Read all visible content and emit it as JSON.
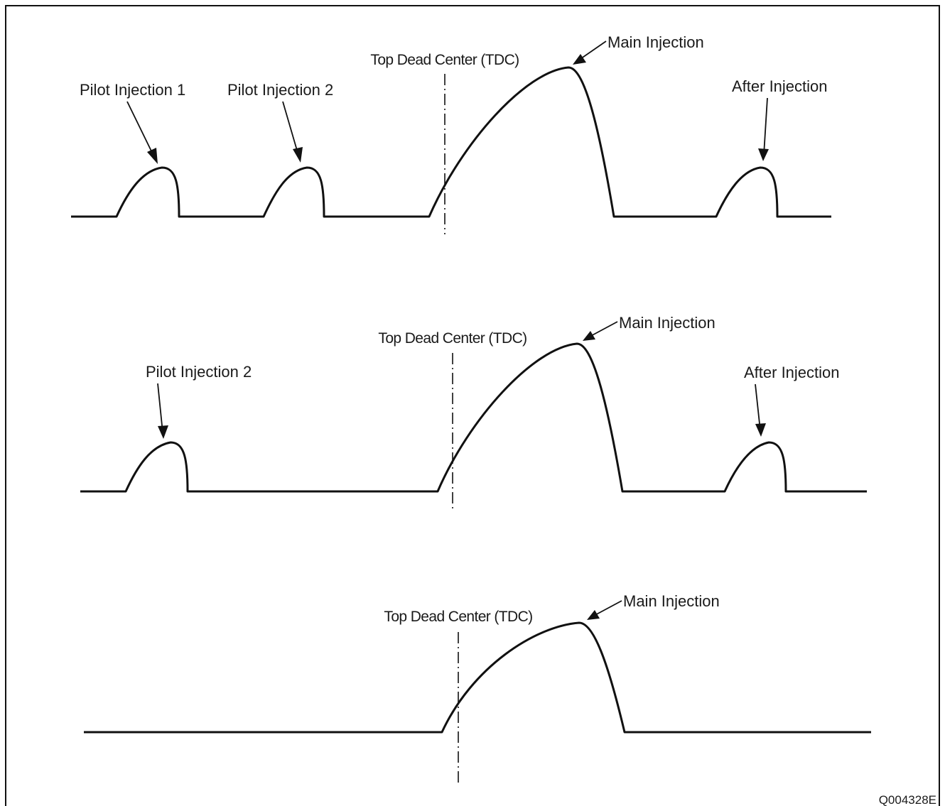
{
  "figure": {
    "code": "Q004328E",
    "colors": {
      "line": "#111111",
      "text": "#1a1a1a",
      "border": "#111111",
      "background": "#ffffff"
    },
    "panels": [
      {
        "tdc_label": "Top Dead Center (TDC)",
        "labels": {
          "pilot1": "Pilot Injection 1",
          "pilot2": "Pilot Injection 2",
          "main": "Main Injection",
          "after": "After Injection"
        }
      },
      {
        "tdc_label": "Top Dead Center (TDC)",
        "labels": {
          "pilot2": "Pilot Injection 2",
          "main": "Main Injection",
          "after": "After Injection"
        }
      },
      {
        "tdc_label": "Top Dead Center (TDC)",
        "labels": {
          "main": "Main Injection"
        }
      }
    ]
  }
}
